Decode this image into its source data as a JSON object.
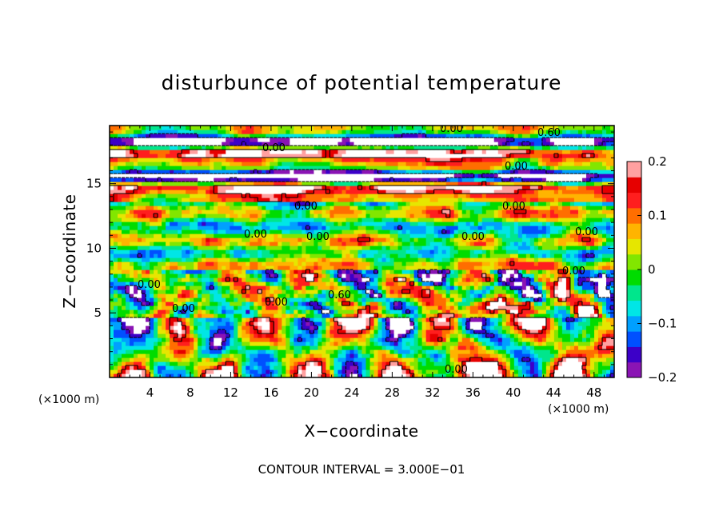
{
  "chart_data": {
    "type": "heatmap",
    "title": "disturbunce of potential temperature",
    "xlabel": "X−coordinate",
    "ylabel": "Z−coordinate",
    "x_unit_label": "(×1000 m)",
    "y_unit_label": "(×1000 m)",
    "xlim": [
      0,
      50
    ],
    "ylim": [
      0,
      19.5
    ],
    "x_ticks": [
      4,
      8,
      12,
      16,
      20,
      24,
      28,
      32,
      36,
      40,
      44,
      48
    ],
    "y_ticks": [
      5,
      10,
      15
    ],
    "x_tick_labels": [
      "4",
      "8",
      "12",
      "16",
      "20",
      "24",
      "28",
      "32",
      "36",
      "40",
      "44",
      "48"
    ],
    "y_tick_labels": [
      "5",
      "10",
      "15"
    ],
    "colorbar": {
      "min": -0.2,
      "max": 0.2,
      "ticks": [
        0.2,
        0.1,
        0,
        -0.1,
        -0.2
      ],
      "tick_labels": [
        "0.2",
        "0.1",
        "0",
        "−0.1",
        "−0.2"
      ],
      "colors": [
        "#8a14b4",
        "#3c00c8",
        "#0050ff",
        "#00a0ff",
        "#00e6e6",
        "#00e68c",
        "#00dc00",
        "#82e600",
        "#e6e600",
        "#ffb400",
        "#ff6e00",
        "#ff1e1e",
        "#e60000",
        "#ffa0a0"
      ]
    },
    "contour_labels": [
      "0.00",
      "0.00",
      "0.00",
      "0.00",
      "0.00",
      "0.00",
      "0.00",
      "0.00",
      "0.00",
      "0.00",
      "0.00",
      "0.00",
      "0.00",
      "0.60",
      "0.60",
      "0.00"
    ],
    "footnote": "CONTOUR INTERVAL = 3.000E−01"
  }
}
